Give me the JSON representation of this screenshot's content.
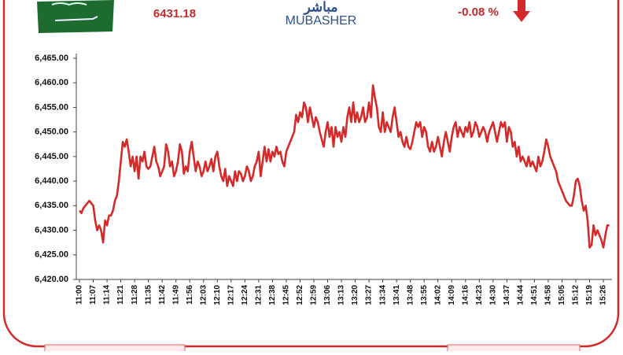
{
  "header": {
    "price": "6431.18",
    "logo_arabic": "مباشر",
    "logo": "MUBASHER",
    "change": "-0.08 %"
  },
  "chart_data": {
    "type": "line",
    "categories": [
      "11:00",
      null,
      null,
      null,
      null,
      null,
      null,
      "11:07",
      null,
      null,
      null,
      null,
      null,
      null,
      "11:14",
      null,
      null,
      null,
      null,
      null,
      null,
      "11:21",
      null,
      null,
      null,
      null,
      null,
      null,
      "11:28",
      null,
      null,
      null,
      null,
      null,
      null,
      "11:35",
      null,
      null,
      null,
      null,
      null,
      null,
      "11:42",
      null,
      null,
      null,
      null,
      null,
      null,
      "11:49",
      null,
      null,
      null,
      null,
      null,
      null,
      "11:56",
      null,
      null,
      null,
      null,
      null,
      null,
      "12:03",
      null,
      null,
      null,
      null,
      null,
      null,
      "12:10",
      null,
      null,
      null,
      null,
      null,
      null,
      "12:17",
      null,
      null,
      null,
      null,
      null,
      null,
      "12:24",
      null,
      null,
      null,
      null,
      null,
      null,
      "12:31",
      null,
      null,
      null,
      null,
      null,
      null,
      "12:38",
      null,
      null,
      null,
      null,
      null,
      null,
      "12:45",
      null,
      null,
      null,
      null,
      null,
      null,
      "12:52",
      null,
      null,
      null,
      null,
      null,
      null,
      "12:59",
      null,
      null,
      null,
      null,
      null,
      null,
      "13:06",
      null,
      null,
      null,
      null,
      null,
      null,
      "13:13",
      null,
      null,
      null,
      null,
      null,
      null,
      "13:20",
      null,
      null,
      null,
      null,
      null,
      null,
      "13:27",
      null,
      null,
      null,
      null,
      null,
      null,
      "13:34",
      null,
      null,
      null,
      null,
      null,
      null,
      "13:41",
      null,
      null,
      null,
      null,
      null,
      null,
      "13:48",
      null,
      null,
      null,
      null,
      null,
      null,
      "13:55",
      null,
      null,
      null,
      null,
      null,
      null,
      "14:02",
      null,
      null,
      null,
      null,
      null,
      null,
      "14:09",
      null,
      null,
      null,
      null,
      null,
      null,
      "14:16",
      null,
      null,
      null,
      null,
      null,
      null,
      "14:23",
      null,
      null,
      null,
      null,
      null,
      null,
      "14:30",
      null,
      null,
      null,
      null,
      null,
      null,
      "14:37",
      null,
      null,
      null,
      null,
      null,
      null,
      "14:44",
      null,
      null,
      null,
      null,
      null,
      null,
      "14:51",
      null,
      null,
      null,
      null,
      null,
      null,
      "14:58",
      null,
      null,
      null,
      null,
      null,
      null,
      "15:05",
      null,
      null,
      null,
      null,
      null,
      null,
      "15:12",
      null,
      null,
      null,
      null,
      null,
      null,
      "15:19",
      null,
      null,
      null,
      null,
      null,
      null,
      "15:26",
      null,
      null,
      null
    ],
    "values": [
      6434,
      6433.5,
      6434.5,
      6435,
      6435.5,
      6436,
      6435.5,
      6435,
      6432,
      6430,
      6431,
      6430,
      6427.5,
      6432,
      6431,
      6433,
      6433,
      6434,
      6436,
      6437,
      6440,
      6444,
      6448,
      6447,
      6448.5,
      6446,
      6443,
      6445,
      6442,
      6445,
      6440.5,
      6445,
      6444,
      6446,
      6443,
      6442.5,
      6443,
      6445,
      6447,
      6444,
      6443,
      6441,
      6442,
      6443,
      6447.5,
      6446,
      6443,
      6444,
      6441,
      6442,
      6444,
      6447.5,
      6446,
      6441.5,
      6443,
      6442,
      6446,
      6448,
      6445,
      6442,
      6444,
      6443,
      6441,
      6442,
      6444,
      6442,
      6443,
      6444.5,
      6442,
      6445,
      6446,
      6443,
      6441,
      6440,
      6442.5,
      6439,
      6441,
      6440,
      6439,
      6442,
      6440,
      6442,
      6441.5,
      6440,
      6441,
      6443,
      6442,
      6440,
      6441,
      6443,
      6444,
      6446,
      6441,
      6444,
      6447,
      6444,
      6446.5,
      6444,
      6446,
      6445,
      6447,
      6445.5,
      6446,
      6444,
      6443,
      6446,
      6447,
      6448,
      6449,
      6450,
      6453.5,
      6452,
      6454,
      6453,
      6456,
      6455,
      6452,
      6455,
      6453,
      6451,
      6453,
      6452,
      6450,
      6448.5,
      6447,
      6450,
      6452,
      6449,
      6451,
      6447,
      6451,
      6449,
      6450,
      6448,
      6451,
      6449,
      6453,
      6455,
      6452,
      6456,
      6452,
      6454,
      6452,
      6453,
      6455,
      6452,
      6453,
      6456,
      6453,
      6459.5,
      6457,
      6455,
      6451,
      6450,
      6454,
      6450,
      6452,
      6451,
      6450,
      6453,
      6455,
      6452,
      6449,
      6450,
      6448,
      6447,
      6449,
      6447,
      6446.5,
      6448,
      6450,
      6452,
      6451,
      6452,
      6449,
      6451,
      6450,
      6447,
      6446,
      6448,
      6446,
      6447,
      6449,
      6447,
      6445,
      6448,
      6450,
      6448,
      6446,
      6449,
      6451,
      6452,
      6449,
      6451,
      6450,
      6449,
      6451,
      6450,
      6452,
      6449,
      6450,
      6452,
      6451,
      6449,
      6450,
      6451,
      6450,
      6448,
      6450,
      6451,
      6452,
      6450,
      6448,
      6450,
      6452,
      6451,
      6452,
      6448,
      6451,
      6450,
      6447,
      6448,
      6445,
      6447,
      6444,
      6445,
      6444,
      6443,
      6445,
      6443,
      6444,
      6443,
      6442,
      6445,
      6443,
      6444,
      6446,
      6448.5,
      6447,
      6445,
      6444,
      6443,
      6442,
      6440,
      6439,
      6438,
      6437,
      6436,
      6435.5,
      6435,
      6435,
      6437,
      6440,
      6440.5,
      6439,
      6436,
      6434,
      6435,
      6432,
      6426.5,
      6427,
      6431,
      6429,
      6430,
      6429,
      6428,
      6426.5,
      6429,
      6431,
      6431
    ],
    "color": "#d42a2a",
    "ylim": [
      6420,
      6465
    ],
    "yticks": [
      {
        "value": 6420,
        "label": "6,420.00"
      },
      {
        "value": 6425,
        "label": "6,425.00"
      },
      {
        "value": 6430,
        "label": "6,430.00"
      },
      {
        "value": 6435,
        "label": "6,435.00"
      },
      {
        "value": 6440,
        "label": "6,440.00"
      },
      {
        "value": 6445,
        "label": "6,445.00"
      },
      {
        "value": 6450,
        "label": "6,450.00"
      },
      {
        "value": 6455,
        "label": "6,455.00"
      },
      {
        "value": 6460,
        "label": "6,460.00"
      },
      {
        "value": 6465,
        "label": "6,465.00"
      }
    ],
    "grid": false
  }
}
